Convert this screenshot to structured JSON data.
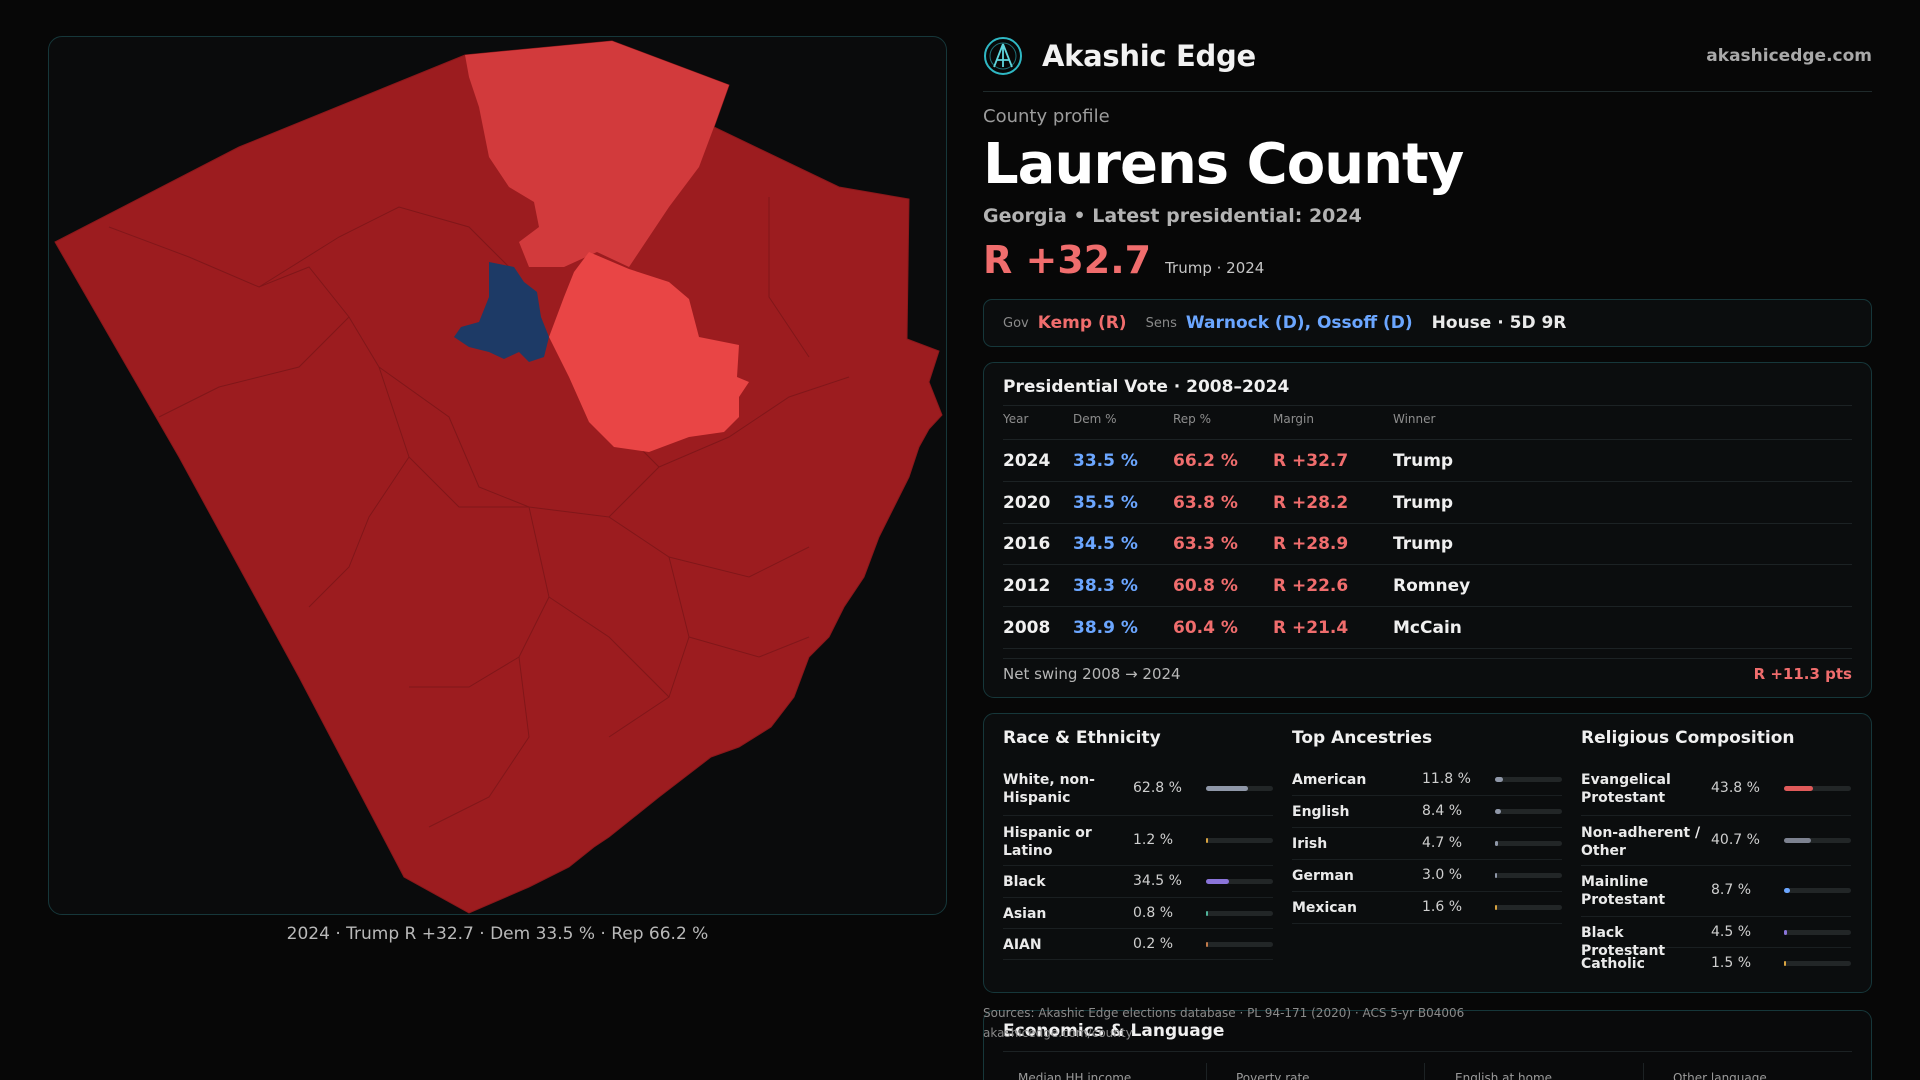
{
  "brand": {
    "name": "Akashic Edge",
    "url": "akashicedge.com"
  },
  "header": {
    "kicker": "County profile",
    "title": "Laurens County",
    "subtitle": "Georgia • Latest presidential: 2024",
    "margin": "R +32.7",
    "margin_note": "Trump · 2024"
  },
  "officials": {
    "gov_label": "Gov",
    "gov": "Kemp (R)",
    "sens_label": "Sens",
    "sens": "Warnock (D), Ossoff (D)",
    "house": "House · 5D 9R"
  },
  "presidential": {
    "title": "Presidential Vote · 2008–2024",
    "columns": [
      "Year",
      "Dem %",
      "Rep %",
      "Margin",
      "Winner"
    ],
    "rows": [
      {
        "year": "2024",
        "dem": "33.5 %",
        "rep": "66.2 %",
        "margin": "R +32.7",
        "winner": "Trump"
      },
      {
        "year": "2020",
        "dem": "35.5 %",
        "rep": "63.8 %",
        "margin": "R +28.2",
        "winner": "Trump"
      },
      {
        "year": "2016",
        "dem": "34.5 %",
        "rep": "63.3 %",
        "margin": "R +28.9",
        "winner": "Trump"
      },
      {
        "year": "2012",
        "dem": "38.3 %",
        "rep": "60.8 %",
        "margin": "R +22.6",
        "winner": "Romney"
      },
      {
        "year": "2008",
        "dem": "38.9 %",
        "rep": "60.4 %",
        "margin": "R +21.4",
        "winner": "McCain"
      }
    ],
    "swing_label": "Net swing 2008 → 2024",
    "swing_value": "R +11.3 pts"
  },
  "demographics": [
    {
      "title": "Race & Ethnicity",
      "rows": [
        {
          "label": "White, non-Hispanic",
          "pct": "62.8 %",
          "value": 62.8,
          "color": "#8f97a8"
        },
        {
          "label": "Hispanic or Latino",
          "pct": "1.2 %",
          "value": 1.2,
          "color": "#d9a441"
        },
        {
          "label": "Black",
          "pct": "34.5 %",
          "value": 34.5,
          "color": "#8a74d9"
        },
        {
          "label": "Asian",
          "pct": "0.8 %",
          "value": 0.8,
          "color": "#4fb39a"
        },
        {
          "label": "AIAN",
          "pct": "0.2 %",
          "value": 0.2,
          "color": "#c27a4a"
        }
      ]
    },
    {
      "title": "Top Ancestries",
      "rows": [
        {
          "label": "American",
          "pct": "11.8 %",
          "value": 11.8,
          "color": "#8f97a8"
        },
        {
          "label": "English",
          "pct": "8.4 %",
          "value": 8.4,
          "color": "#8f97a8"
        },
        {
          "label": "Irish",
          "pct": "4.7 %",
          "value": 4.7,
          "color": "#8f97a8"
        },
        {
          "label": "German",
          "pct": "3.0 %",
          "value": 3.0,
          "color": "#8f97a8"
        },
        {
          "label": "Mexican",
          "pct": "1.6 %",
          "value": 1.6,
          "color": "#d9a441"
        }
      ]
    },
    {
      "title": "Religious Composition",
      "rows": [
        {
          "label": "Evangelical Protestant",
          "pct": "43.8 %",
          "value": 43.8,
          "color": "#e05a5a"
        },
        {
          "label": "Non-adherent / Other",
          "pct": "40.7 %",
          "value": 40.7,
          "color": "#7d8290"
        },
        {
          "label": "Mainline Protestant",
          "pct": "8.7 %",
          "value": 8.7,
          "color": "#6ba6ff"
        },
        {
          "label": "Black Protestant",
          "pct": "4.5 %",
          "value": 4.5,
          "color": "#8a74d9"
        },
        {
          "label": "Catholic",
          "pct": "1.5 %",
          "value": 1.5,
          "color": "#d9a441"
        }
      ]
    }
  ],
  "sources": "Sources: Akashic Edge elections database · PL 94-171 (2020) · ACS 5-yr B04006",
  "sources_url": "akashicedge.com/county",
  "economics": {
    "title": "Economics & Language",
    "tiles": [
      "Median HH income",
      "Poverty rate",
      "English at home",
      "Other language"
    ]
  },
  "map": {
    "caption": "2024 · Trump R +32.7 · Dem 33.5 % · Rep 66.2 %",
    "colors": {
      "strong_rep": "#9c1c1f",
      "lean_rep": "#d23a3c",
      "likely_rep": "#e94545",
      "dem": "#1d3a66"
    }
  }
}
